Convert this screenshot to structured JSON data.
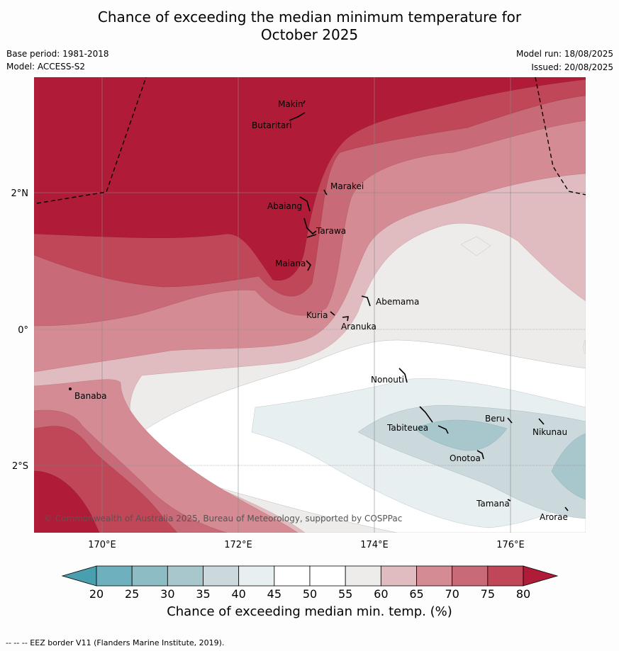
{
  "header": {
    "title_line1": "Chance of exceeding the median minimum temperature for",
    "title_line2": "October 2025",
    "base_period": "Base period: 1981-2018",
    "model": "Model: ACCESS-S2",
    "model_run": "Model run: 18/08/2025",
    "issued": "Issued: 20/08/2025"
  },
  "map": {
    "lon_ticks": [
      "170°E",
      "172°E",
      "174°E",
      "176°E"
    ],
    "lat_ticks": [
      "2°N",
      "0°",
      "2°S"
    ],
    "places": [
      "Makin",
      "Butaritari",
      "Marakei",
      "Abaiang",
      "Tarawa",
      "Maiana",
      "Abemama",
      "Kuria",
      "Aranuka",
      "Nonouti",
      "Banaba",
      "Tabiteuea",
      "Beru",
      "Nikunau",
      "Onotoa",
      "Tamana",
      "Arorae"
    ],
    "copyright": "© Commonwealth of Australia 2025, Bureau of Meteorology, supported by COSPPac"
  },
  "colorbar": {
    "ticks": [
      "20",
      "25",
      "30",
      "35",
      "40",
      "45",
      "50",
      "55",
      "60",
      "65",
      "70",
      "75",
      "80"
    ],
    "colors": {
      "below20": "#4a9fae",
      "20-25": "#6eb0bd",
      "25-30": "#8dbcc4",
      "30-35": "#a8c7cc",
      "35-40": "#cbd9dd",
      "40-45": "#e8eff1",
      "45-50": "#ffffff",
      "50-55": "#ffffff",
      "55-60": "#edecea",
      "60-65": "#e0bcc1",
      "65-70": "#d48b94",
      "70-75": "#c86a77",
      "75-80": "#bf4757",
      "above80": "#b01c38"
    },
    "label": "Chance of exceeding median min. temp. (%)"
  },
  "footnote": "--  --  -- EEZ border V11 (Flanders Marine Institute, 2019)."
}
